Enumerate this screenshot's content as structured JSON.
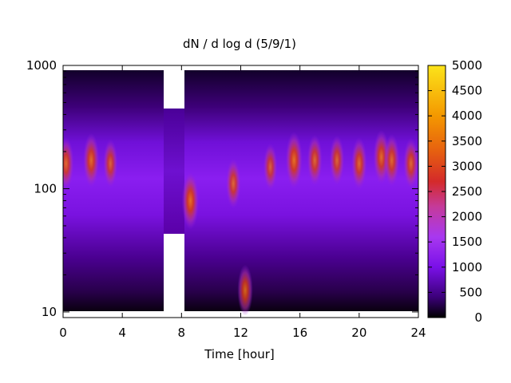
{
  "chart_data": {
    "type": "heatmap",
    "title": "dN / d log d (5/9/1)",
    "xlabel": "Time [hour]",
    "ylabel": "",
    "xlim": [
      0,
      24
    ],
    "ylim": [
      9,
      1000
    ],
    "y_scale": "log",
    "x_ticks": [
      0,
      4,
      8,
      12,
      16,
      20,
      24
    ],
    "y_ticks": [
      10,
      100,
      1000
    ],
    "colorbar": {
      "range": [
        0,
        5000
      ],
      "ticks": [
        0,
        500,
        1000,
        1500,
        2000,
        2500,
        3000,
        3500,
        4000,
        4500,
        5000
      ],
      "colormap": [
        "#000000",
        "#3b0078",
        "#7a10e8",
        "#a838f0",
        "#c53a9a",
        "#d42a2a",
        "#e66010",
        "#f49800",
        "#fce41a"
      ],
      "placement": "right"
    },
    "gap": {
      "x": [
        6.7,
        8.0
      ],
      "note": "no data"
    },
    "features": [
      {
        "t": 0.2,
        "d": 160,
        "value": 3200
      },
      {
        "t": 1.9,
        "d": 170,
        "value": 3500
      },
      {
        "t": 3.2,
        "d": 160,
        "value": 2600
      },
      {
        "t": 8.6,
        "d": 80,
        "value": 4000
      },
      {
        "t": 11.5,
        "d": 110,
        "value": 2800
      },
      {
        "t": 12.3,
        "d": 15,
        "value": 3000
      },
      {
        "t": 14.0,
        "d": 150,
        "value": 2400
      },
      {
        "t": 15.6,
        "d": 170,
        "value": 3900
      },
      {
        "t": 17.0,
        "d": 170,
        "value": 3000
      },
      {
        "t": 18.5,
        "d": 170,
        "value": 2800
      },
      {
        "t": 20.0,
        "d": 160,
        "value": 3200
      },
      {
        "t": 21.5,
        "d": 180,
        "value": 3500
      },
      {
        "t": 22.2,
        "d": 170,
        "value": 3200
      },
      {
        "t": 23.5,
        "d": 160,
        "value": 3000
      }
    ]
  }
}
